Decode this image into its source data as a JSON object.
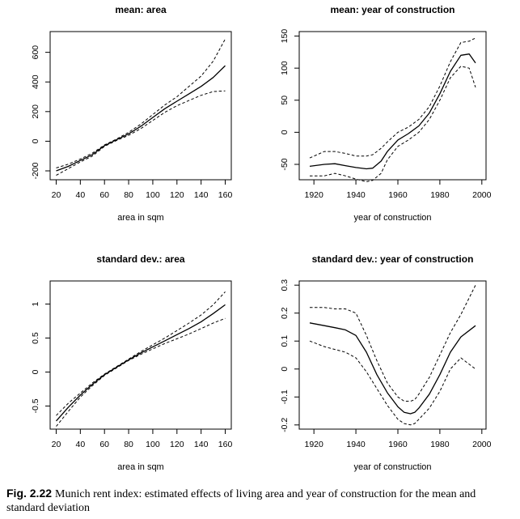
{
  "caption": {
    "label": "Fig. 2.22",
    "text": "Munich rent index: estimated effects of living area and year of construction for the mean and standard deviation"
  },
  "colors": {
    "axis": "#000000",
    "line": "#000000"
  },
  "chart_data": [
    {
      "type": "line",
      "title": "mean: area",
      "xlabel": "area in sqm",
      "ylabel": "",
      "xlim": [
        15,
        165
      ],
      "ylim": [
        -260,
        740
      ],
      "x_ticks": [
        20,
        40,
        60,
        80,
        100,
        120,
        140,
        160
      ],
      "y_ticks": [
        -200,
        0,
        200,
        400,
        600
      ],
      "series": [
        {
          "style": "solid",
          "x": [
            20,
            30,
            40,
            50,
            60,
            70,
            80,
            90,
            100,
            110,
            120,
            130,
            140,
            150,
            160
          ],
          "y": [
            -200,
            -170,
            -130,
            -90,
            -30,
            10,
            50,
            100,
            160,
            220,
            270,
            320,
            370,
            430,
            510
          ]
        },
        {
          "style": "dashed",
          "x": [
            20,
            30,
            40,
            50,
            60,
            70,
            80,
            90,
            100,
            110,
            120,
            130,
            140,
            150,
            160
          ],
          "y": [
            -180,
            -155,
            -120,
            -80,
            -25,
            15,
            60,
            115,
            180,
            245,
            300,
            370,
            440,
            540,
            690
          ]
        },
        {
          "style": "dashed",
          "x": [
            20,
            30,
            40,
            50,
            60,
            70,
            80,
            90,
            100,
            110,
            120,
            130,
            140,
            150,
            160
          ],
          "y": [
            -230,
            -185,
            -140,
            -100,
            -35,
            5,
            40,
            85,
            140,
            195,
            240,
            275,
            310,
            335,
            340
          ]
        }
      ]
    },
    {
      "type": "line",
      "title": "mean: year of construction",
      "xlabel": "year of construction",
      "ylabel": "",
      "xlim": [
        1913,
        2002
      ],
      "ylim": [
        -74,
        157
      ],
      "x_ticks": [
        1920,
        1940,
        1960,
        1980,
        2000
      ],
      "y_ticks": [
        -50,
        0,
        50,
        100,
        150
      ],
      "series": [
        {
          "style": "solid",
          "x": [
            1918,
            1925,
            1930,
            1935,
            1940,
            1945,
            1948,
            1952,
            1955,
            1960,
            1965,
            1970,
            1975,
            1980,
            1985,
            1990,
            1994,
            1997
          ],
          "y": [
            -53,
            -50,
            -49,
            -52,
            -55,
            -57,
            -56,
            -45,
            -30,
            -12,
            -2,
            10,
            30,
            60,
            95,
            120,
            122,
            108
          ]
        },
        {
          "style": "dashed",
          "x": [
            1918,
            1925,
            1930,
            1935,
            1940,
            1945,
            1948,
            1952,
            1955,
            1960,
            1965,
            1970,
            1975,
            1980,
            1985,
            1990,
            1994,
            1997
          ],
          "y": [
            -40,
            -30,
            -30,
            -33,
            -37,
            -37,
            -35,
            -25,
            -15,
            0,
            8,
            20,
            40,
            72,
            110,
            140,
            142,
            147
          ]
        },
        {
          "style": "dashed",
          "x": [
            1918,
            1925,
            1930,
            1935,
            1940,
            1945,
            1948,
            1952,
            1955,
            1960,
            1965,
            1970,
            1975,
            1980,
            1985,
            1990,
            1994,
            1997
          ],
          "y": [
            -68,
            -68,
            -64,
            -68,
            -73,
            -77,
            -75,
            -64,
            -43,
            -22,
            -12,
            0,
            20,
            50,
            85,
            103,
            100,
            70
          ]
        }
      ]
    },
    {
      "type": "line",
      "title": "standard dev.: area",
      "xlabel": "area in sqm",
      "ylabel": "",
      "xlim": [
        15,
        165
      ],
      "ylim": [
        -0.84,
        1.34
      ],
      "x_ticks": [
        20,
        40,
        60,
        80,
        100,
        120,
        140,
        160
      ],
      "y_ticks": [
        -0.5,
        0.0,
        0.5,
        1.0
      ],
      "series": [
        {
          "style": "solid",
          "x": [
            20,
            30,
            40,
            50,
            60,
            70,
            80,
            90,
            100,
            110,
            120,
            130,
            140,
            150,
            160
          ],
          "y": [
            -0.72,
            -0.52,
            -0.34,
            -0.18,
            -0.04,
            0.07,
            0.18,
            0.28,
            0.37,
            0.46,
            0.55,
            0.64,
            0.74,
            0.86,
            0.99
          ]
        },
        {
          "style": "dashed",
          "x": [
            20,
            30,
            40,
            50,
            60,
            70,
            80,
            90,
            100,
            110,
            120,
            130,
            140,
            150,
            160
          ],
          "y": [
            -0.64,
            -0.46,
            -0.31,
            -0.16,
            -0.03,
            0.08,
            0.19,
            0.3,
            0.4,
            0.5,
            0.61,
            0.72,
            0.84,
            0.99,
            1.18
          ]
        },
        {
          "style": "dashed",
          "x": [
            20,
            30,
            40,
            50,
            60,
            70,
            80,
            90,
            100,
            110,
            120,
            130,
            140,
            150,
            160
          ],
          "y": [
            -0.8,
            -0.58,
            -0.37,
            -0.2,
            -0.05,
            0.06,
            0.17,
            0.26,
            0.34,
            0.42,
            0.49,
            0.56,
            0.64,
            0.72,
            0.79
          ]
        }
      ]
    },
    {
      "type": "line",
      "title": "standard dev.: year of construction",
      "xlabel": "year of construction",
      "ylabel": "",
      "xlim": [
        1913,
        2002
      ],
      "ylim": [
        -0.215,
        0.315
      ],
      "x_ticks": [
        1920,
        1940,
        1960,
        1980,
        2000
      ],
      "y_ticks": [
        -0.2,
        -0.1,
        0.0,
        0.1,
        0.2,
        0.3
      ],
      "series": [
        {
          "style": "solid",
          "x": [
            1918,
            1925,
            1930,
            1935,
            1940,
            1945,
            1950,
            1955,
            1960,
            1963,
            1966,
            1968,
            1970,
            1975,
            1980,
            1985,
            1990,
            1997
          ],
          "y": [
            0.165,
            0.155,
            0.148,
            0.14,
            0.12,
            0.06,
            -0.02,
            -0.085,
            -0.135,
            -0.155,
            -0.16,
            -0.155,
            -0.14,
            -0.09,
            -0.02,
            0.06,
            0.115,
            0.155
          ]
        },
        {
          "style": "dashed",
          "x": [
            1918,
            1925,
            1930,
            1935,
            1940,
            1945,
            1950,
            1955,
            1960,
            1963,
            1966,
            1968,
            1970,
            1975,
            1980,
            1985,
            1990,
            1997
          ],
          "y": [
            0.22,
            0.22,
            0.215,
            0.215,
            0.2,
            0.12,
            0.03,
            -0.05,
            -0.1,
            -0.115,
            -0.115,
            -0.11,
            -0.09,
            -0.03,
            0.05,
            0.13,
            0.195,
            0.3
          ]
        },
        {
          "style": "dashed",
          "x": [
            1918,
            1925,
            1930,
            1935,
            1940,
            1945,
            1950,
            1955,
            1960,
            1963,
            1966,
            1968,
            1970,
            1975,
            1980,
            1985,
            1990,
            1997
          ],
          "y": [
            0.1,
            0.08,
            0.07,
            0.06,
            0.04,
            -0.01,
            -0.07,
            -0.13,
            -0.18,
            -0.195,
            -0.2,
            -0.195,
            -0.18,
            -0.14,
            -0.08,
            0.0,
            0.04,
            0.0
          ]
        }
      ]
    }
  ]
}
